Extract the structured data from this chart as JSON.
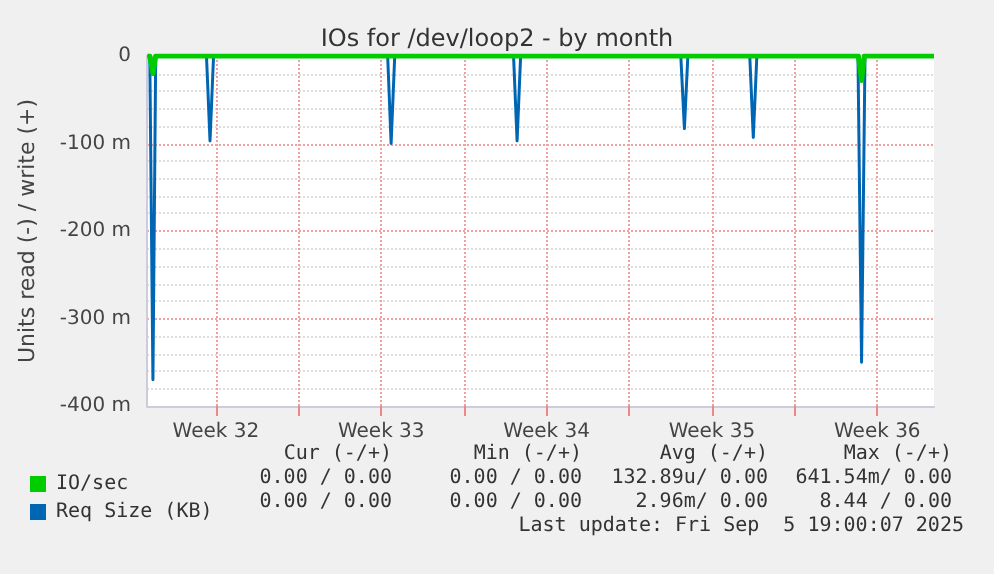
{
  "chart_data": {
    "type": "line",
    "title": "IOs for /dev/loop2 - by month",
    "ylabel": "Units read (-) / write (+)",
    "xlim": [
      "2025-08-04T14:00",
      "2025-09-06T21:36"
    ],
    "xticks": [
      {
        "value": "2025-08-07T12:00",
        "label": "Week 32"
      },
      {
        "value": "2025-08-11",
        "label": null
      },
      {
        "value": "2025-08-14T12:00",
        "label": "Week 33"
      },
      {
        "value": "2025-08-18",
        "label": null
      },
      {
        "value": "2025-08-21T12:00",
        "label": "Week 34"
      },
      {
        "value": "2025-08-25",
        "label": null
      },
      {
        "value": "2025-08-28T12:00",
        "label": "Week 35"
      },
      {
        "value": "2025-09-01",
        "label": null
      },
      {
        "value": "2025-09-04T12:00",
        "label": "Week 36"
      }
    ],
    "ylim": [
      -400,
      0
    ],
    "yticks": [
      {
        "value": -400,
        "label": "-400 m"
      },
      {
        "value": -300,
        "label": "-300 m"
      },
      {
        "value": -200,
        "label": "-200 m"
      },
      {
        "value": -100,
        "label": "-100 m"
      },
      0
    ],
    "grid": true,
    "legend": "bottom left",
    "marker": "none",
    "line_style": "solid",
    "series": [
      {
        "name": "IO/sec",
        "color": "#00cc00",
        "x": [
          "2025-08-04T14:24",
          "2025-08-04T16:48",
          "2025-08-04T20:00",
          "2025-08-04T22:48",
          "2025-08-05T02:24",
          "2025-09-03T14:24",
          "2025-09-03T16:48",
          "2025-09-03T20:00",
          "2025-09-03T22:48",
          "2025-09-04T02:24",
          "2025-09-06T21:36"
        ],
        "values": [
          0,
          0,
          -20,
          0,
          0,
          0,
          0,
          -28,
          0,
          0,
          0
        ]
      },
      {
        "name": "Req Size (KB)",
        "color": "#0066b3",
        "x": [
          "2025-08-04T14:24",
          "2025-08-04T16:48",
          "2025-08-04T20:00",
          "2025-08-04T22:48",
          "2025-08-07T02:24",
          "2025-08-07T06:00",
          "2025-08-07T09:36",
          "2025-08-14T18:30",
          "2025-08-14T22:00",
          "2025-08-15T01:40",
          "2025-08-20T02:24",
          "2025-08-20T06:00",
          "2025-08-20T09:36",
          "2025-08-27T04:20",
          "2025-08-27T08:00",
          "2025-08-27T11:30",
          "2025-08-30T02:24",
          "2025-08-30T06:00",
          "2025-08-30T09:36",
          "2025-09-03T16:20",
          "2025-09-03T20:00",
          "2025-09-03T23:30",
          "2025-09-06T21:36"
        ],
        "values": [
          0,
          0,
          -370,
          0,
          0,
          -97,
          0,
          0,
          -100,
          0,
          0,
          -97,
          0,
          0,
          -83,
          0,
          0,
          -93,
          0,
          0,
          -350,
          0,
          0
        ]
      }
    ],
    "annotations": [
      "Cur (-/+)",
      "Min (-/+)",
      "Avg (-/+)",
      "Max (-/+)",
      "0.00 / 0.00",
      "0.00 / 0.00",
      "132.89u/ 0.00",
      "641.54m/ 0.00",
      "0.00 / 0.00",
      "0.00 / 0.00",
      "2.96m/ 0.00",
      "8.44 / 0.00",
      "Last update: Fri Sep  5 19:00:07 2025"
    ]
  }
}
